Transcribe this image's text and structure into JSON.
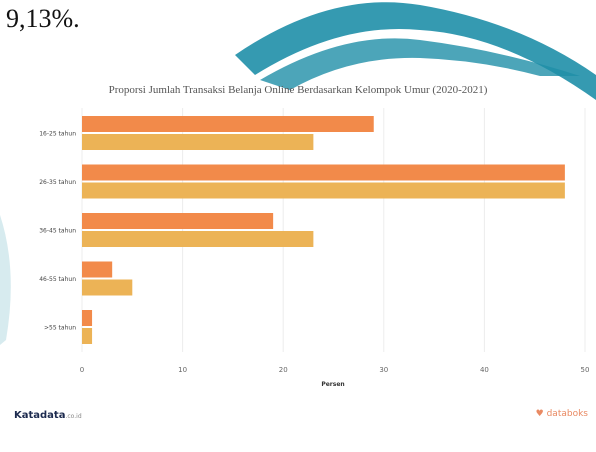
{
  "page_text": "9,13%.",
  "colors": {
    "series1": "#f28a4a",
    "series2": "#ecb356",
    "grid": "#ececec",
    "deco": "#1f8fa8"
  },
  "brand": {
    "left": "Katadata",
    "left_suffix": ".co.id",
    "right": "databoks",
    "right_icon": "heart-icon"
  },
  "chart_data": {
    "type": "bar",
    "orientation": "horizontal",
    "title": "Proporsi Jumlah Transaksi Belanja Online Berdasarkan Kelompok Umur (2020-2021)",
    "xlabel": "Persen",
    "categories": [
      "16-25 tahun",
      "26-35 tahun",
      "36-45 tahun",
      "46-55 tahun",
      ">55 tahun"
    ],
    "series": [
      {
        "values": [
          29,
          48,
          19,
          3,
          1
        ]
      },
      {
        "values": [
          23,
          48,
          23,
          5,
          1
        ]
      }
    ],
    "xlim": [
      0,
      50
    ],
    "xticks": [
      0,
      10,
      20,
      30,
      40,
      50
    ],
    "grid": true
  }
}
